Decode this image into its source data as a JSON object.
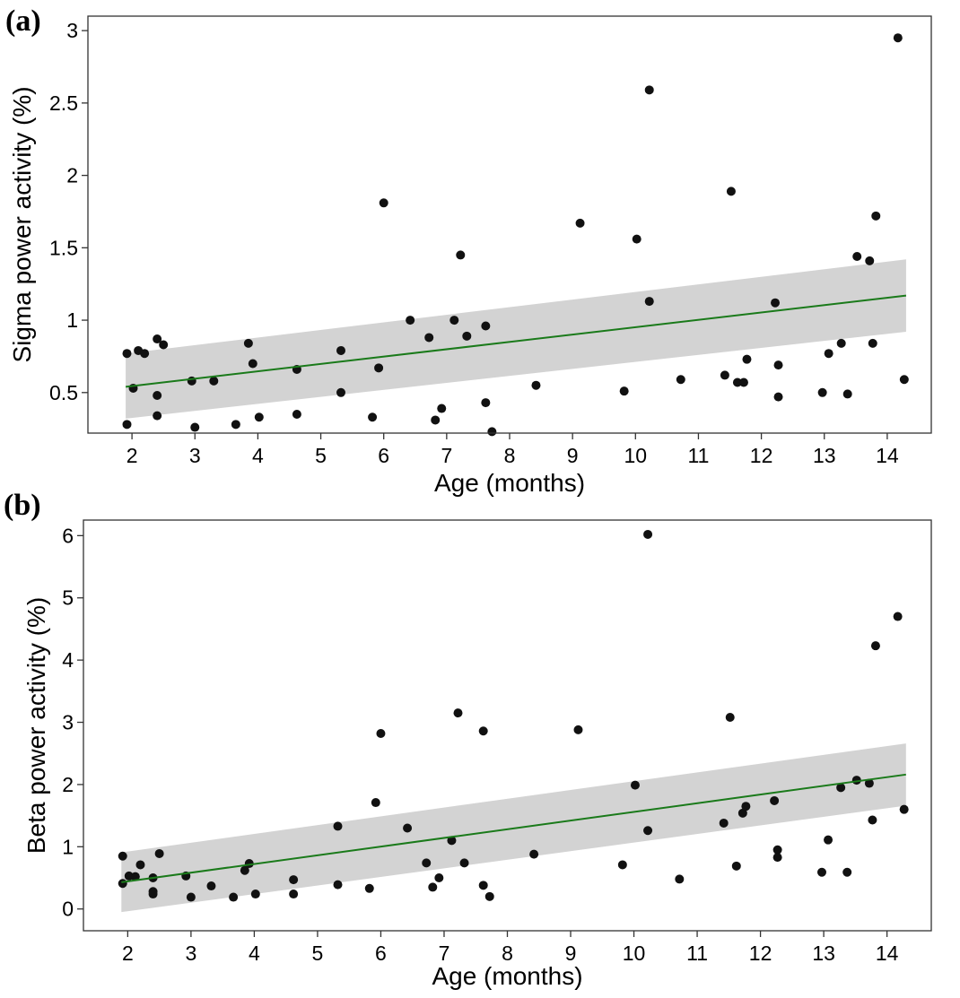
{
  "chart_data": [
    {
      "type": "scatter",
      "panel_label": "(a)",
      "xlabel": "Age (months)",
      "ylabel": "Sigma power activity (%)",
      "xlim": [
        1.3,
        14.7
      ],
      "ylim": [
        0.22,
        3.1
      ],
      "x_ticks": [
        2,
        3,
        4,
        5,
        6,
        7,
        8,
        9,
        10,
        11,
        12,
        13,
        14
      ],
      "y_ticks": [
        0.5,
        1,
        1.5,
        2,
        2.5,
        3
      ],
      "y_tick_labels": [
        "0.5",
        "1",
        "1.5",
        "2",
        "2.5",
        "3"
      ],
      "fit": {
        "x": [
          1.9,
          14.3
        ],
        "y": [
          0.54,
          1.17
        ],
        "lower": [
          0.32,
          0.92
        ],
        "upper": [
          0.77,
          1.42
        ]
      },
      "points": [
        [
          1.92,
          0.77
        ],
        [
          1.92,
          0.28
        ],
        [
          2.02,
          0.53
        ],
        [
          2.1,
          0.79
        ],
        [
          2.2,
          0.77
        ],
        [
          2.4,
          0.87
        ],
        [
          2.4,
          0.48
        ],
        [
          2.4,
          0.34
        ],
        [
          2.5,
          0.83
        ],
        [
          2.95,
          0.58
        ],
        [
          3.0,
          0.26
        ],
        [
          3.3,
          0.58
        ],
        [
          3.65,
          0.28
        ],
        [
          3.85,
          0.84
        ],
        [
          3.92,
          0.7
        ],
        [
          4.02,
          0.33
        ],
        [
          4.62,
          0.66
        ],
        [
          4.62,
          0.35
        ],
        [
          5.32,
          0.79
        ],
        [
          5.32,
          0.5
        ],
        [
          5.82,
          0.33
        ],
        [
          5.92,
          0.67
        ],
        [
          6.0,
          1.81
        ],
        [
          6.42,
          1.0
        ],
        [
          6.72,
          0.88
        ],
        [
          6.82,
          0.31
        ],
        [
          6.92,
          0.39
        ],
        [
          7.12,
          1.0
        ],
        [
          7.22,
          1.45
        ],
        [
          7.32,
          0.89
        ],
        [
          7.62,
          0.96
        ],
        [
          7.62,
          0.43
        ],
        [
          7.72,
          0.23
        ],
        [
          8.42,
          0.55
        ],
        [
          9.12,
          1.67
        ],
        [
          9.82,
          0.51
        ],
        [
          10.02,
          1.56
        ],
        [
          10.22,
          2.59
        ],
        [
          10.22,
          1.13
        ],
        [
          10.72,
          0.59
        ],
        [
          11.42,
          0.62
        ],
        [
          11.52,
          1.89
        ],
        [
          11.62,
          0.57
        ],
        [
          11.72,
          0.57
        ],
        [
          11.77,
          0.73
        ],
        [
          12.22,
          1.12
        ],
        [
          12.27,
          0.69
        ],
        [
          12.27,
          0.47
        ],
        [
          12.97,
          0.5
        ],
        [
          13.07,
          0.77
        ],
        [
          13.27,
          0.84
        ],
        [
          13.37,
          0.49
        ],
        [
          13.52,
          1.44
        ],
        [
          13.72,
          1.41
        ],
        [
          13.77,
          0.84
        ],
        [
          13.82,
          1.72
        ],
        [
          14.17,
          2.95
        ],
        [
          14.27,
          0.59
        ]
      ]
    },
    {
      "type": "scatter",
      "panel_label": "(b)",
      "xlabel": "Age (months)",
      "ylabel": "Beta power activity (%)",
      "xlim": [
        1.3,
        14.7
      ],
      "ylim": [
        -0.35,
        6.25
      ],
      "x_ticks": [
        2,
        3,
        4,
        5,
        6,
        7,
        8,
        9,
        10,
        11,
        12,
        13,
        14
      ],
      "y_ticks": [
        0,
        1,
        2,
        3,
        4,
        5,
        6
      ],
      "y_tick_labels": [
        "0",
        "1",
        "2",
        "3",
        "4",
        "5",
        "6"
      ],
      "fit": {
        "x": [
          1.9,
          14.3
        ],
        "y": [
          0.43,
          2.16
        ],
        "lower": [
          -0.05,
          1.66
        ],
        "upper": [
          0.91,
          2.66
        ]
      },
      "points": [
        [
          1.92,
          0.85
        ],
        [
          1.92,
          0.41
        ],
        [
          2.02,
          0.53
        ],
        [
          2.12,
          0.52
        ],
        [
          2.2,
          0.71
        ],
        [
          2.4,
          0.5
        ],
        [
          2.4,
          0.28
        ],
        [
          2.4,
          0.24
        ],
        [
          2.5,
          0.89
        ],
        [
          2.92,
          0.53
        ],
        [
          3.0,
          0.19
        ],
        [
          3.32,
          0.37
        ],
        [
          3.67,
          0.19
        ],
        [
          3.85,
          0.62
        ],
        [
          3.92,
          0.73
        ],
        [
          4.02,
          0.24
        ],
        [
          4.62,
          0.47
        ],
        [
          4.62,
          0.24
        ],
        [
          5.32,
          1.33
        ],
        [
          5.32,
          0.39
        ],
        [
          5.82,
          0.33
        ],
        [
          5.92,
          1.71
        ],
        [
          6.0,
          2.82
        ],
        [
          6.42,
          1.3
        ],
        [
          6.72,
          0.74
        ],
        [
          6.82,
          0.35
        ],
        [
          6.92,
          0.5
        ],
        [
          7.12,
          1.1
        ],
        [
          7.22,
          3.15
        ],
        [
          7.32,
          0.74
        ],
        [
          7.62,
          2.86
        ],
        [
          7.62,
          0.38
        ],
        [
          7.72,
          0.2
        ],
        [
          8.42,
          0.88
        ],
        [
          9.12,
          2.88
        ],
        [
          9.82,
          0.71
        ],
        [
          10.02,
          1.99
        ],
        [
          10.22,
          6.02
        ],
        [
          10.22,
          1.26
        ],
        [
          10.72,
          0.48
        ],
        [
          11.42,
          1.38
        ],
        [
          11.52,
          3.08
        ],
        [
          11.62,
          0.69
        ],
        [
          11.72,
          1.54
        ],
        [
          11.77,
          1.65
        ],
        [
          12.22,
          1.74
        ],
        [
          12.27,
          0.95
        ],
        [
          12.27,
          0.83
        ],
        [
          12.97,
          0.59
        ],
        [
          13.07,
          1.11
        ],
        [
          13.27,
          1.95
        ],
        [
          13.37,
          0.59
        ],
        [
          13.52,
          2.07
        ],
        [
          13.72,
          2.02
        ],
        [
          13.77,
          1.43
        ],
        [
          13.82,
          4.23
        ],
        [
          14.17,
          4.7
        ],
        [
          14.27,
          1.6
        ]
      ]
    }
  ],
  "colors": {
    "point": "#111111",
    "fit_line": "#1a7a1a",
    "ci_band": "#d3d3d3",
    "frame": "#333333"
  }
}
